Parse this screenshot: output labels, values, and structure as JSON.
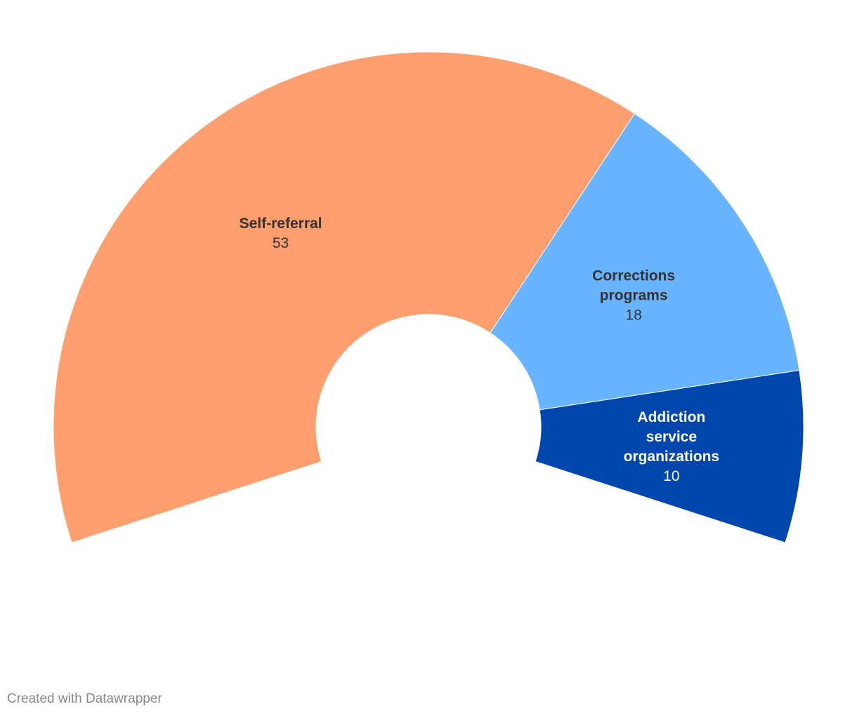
{
  "chart_data": {
    "type": "pie",
    "variant": "partial-donut",
    "categories": [
      "Self-referral",
      "Corrections programs",
      "Addiction service organizations"
    ],
    "label_lines": [
      [
        "Self-referral"
      ],
      [
        "Corrections",
        "programs"
      ],
      [
        "Addiction",
        "service",
        "organizations"
      ]
    ],
    "values": [
      53,
      18,
      10
    ],
    "colors": [
      "#ff9e6e",
      "#68b4ff",
      "#0046ad"
    ],
    "label_colors": [
      "#333333",
      "#333333",
      "#ffffff"
    ],
    "start_angle_deg": 252,
    "sweep_deg": 216
  },
  "footer": {
    "credit": "Created with Datawrapper"
  }
}
